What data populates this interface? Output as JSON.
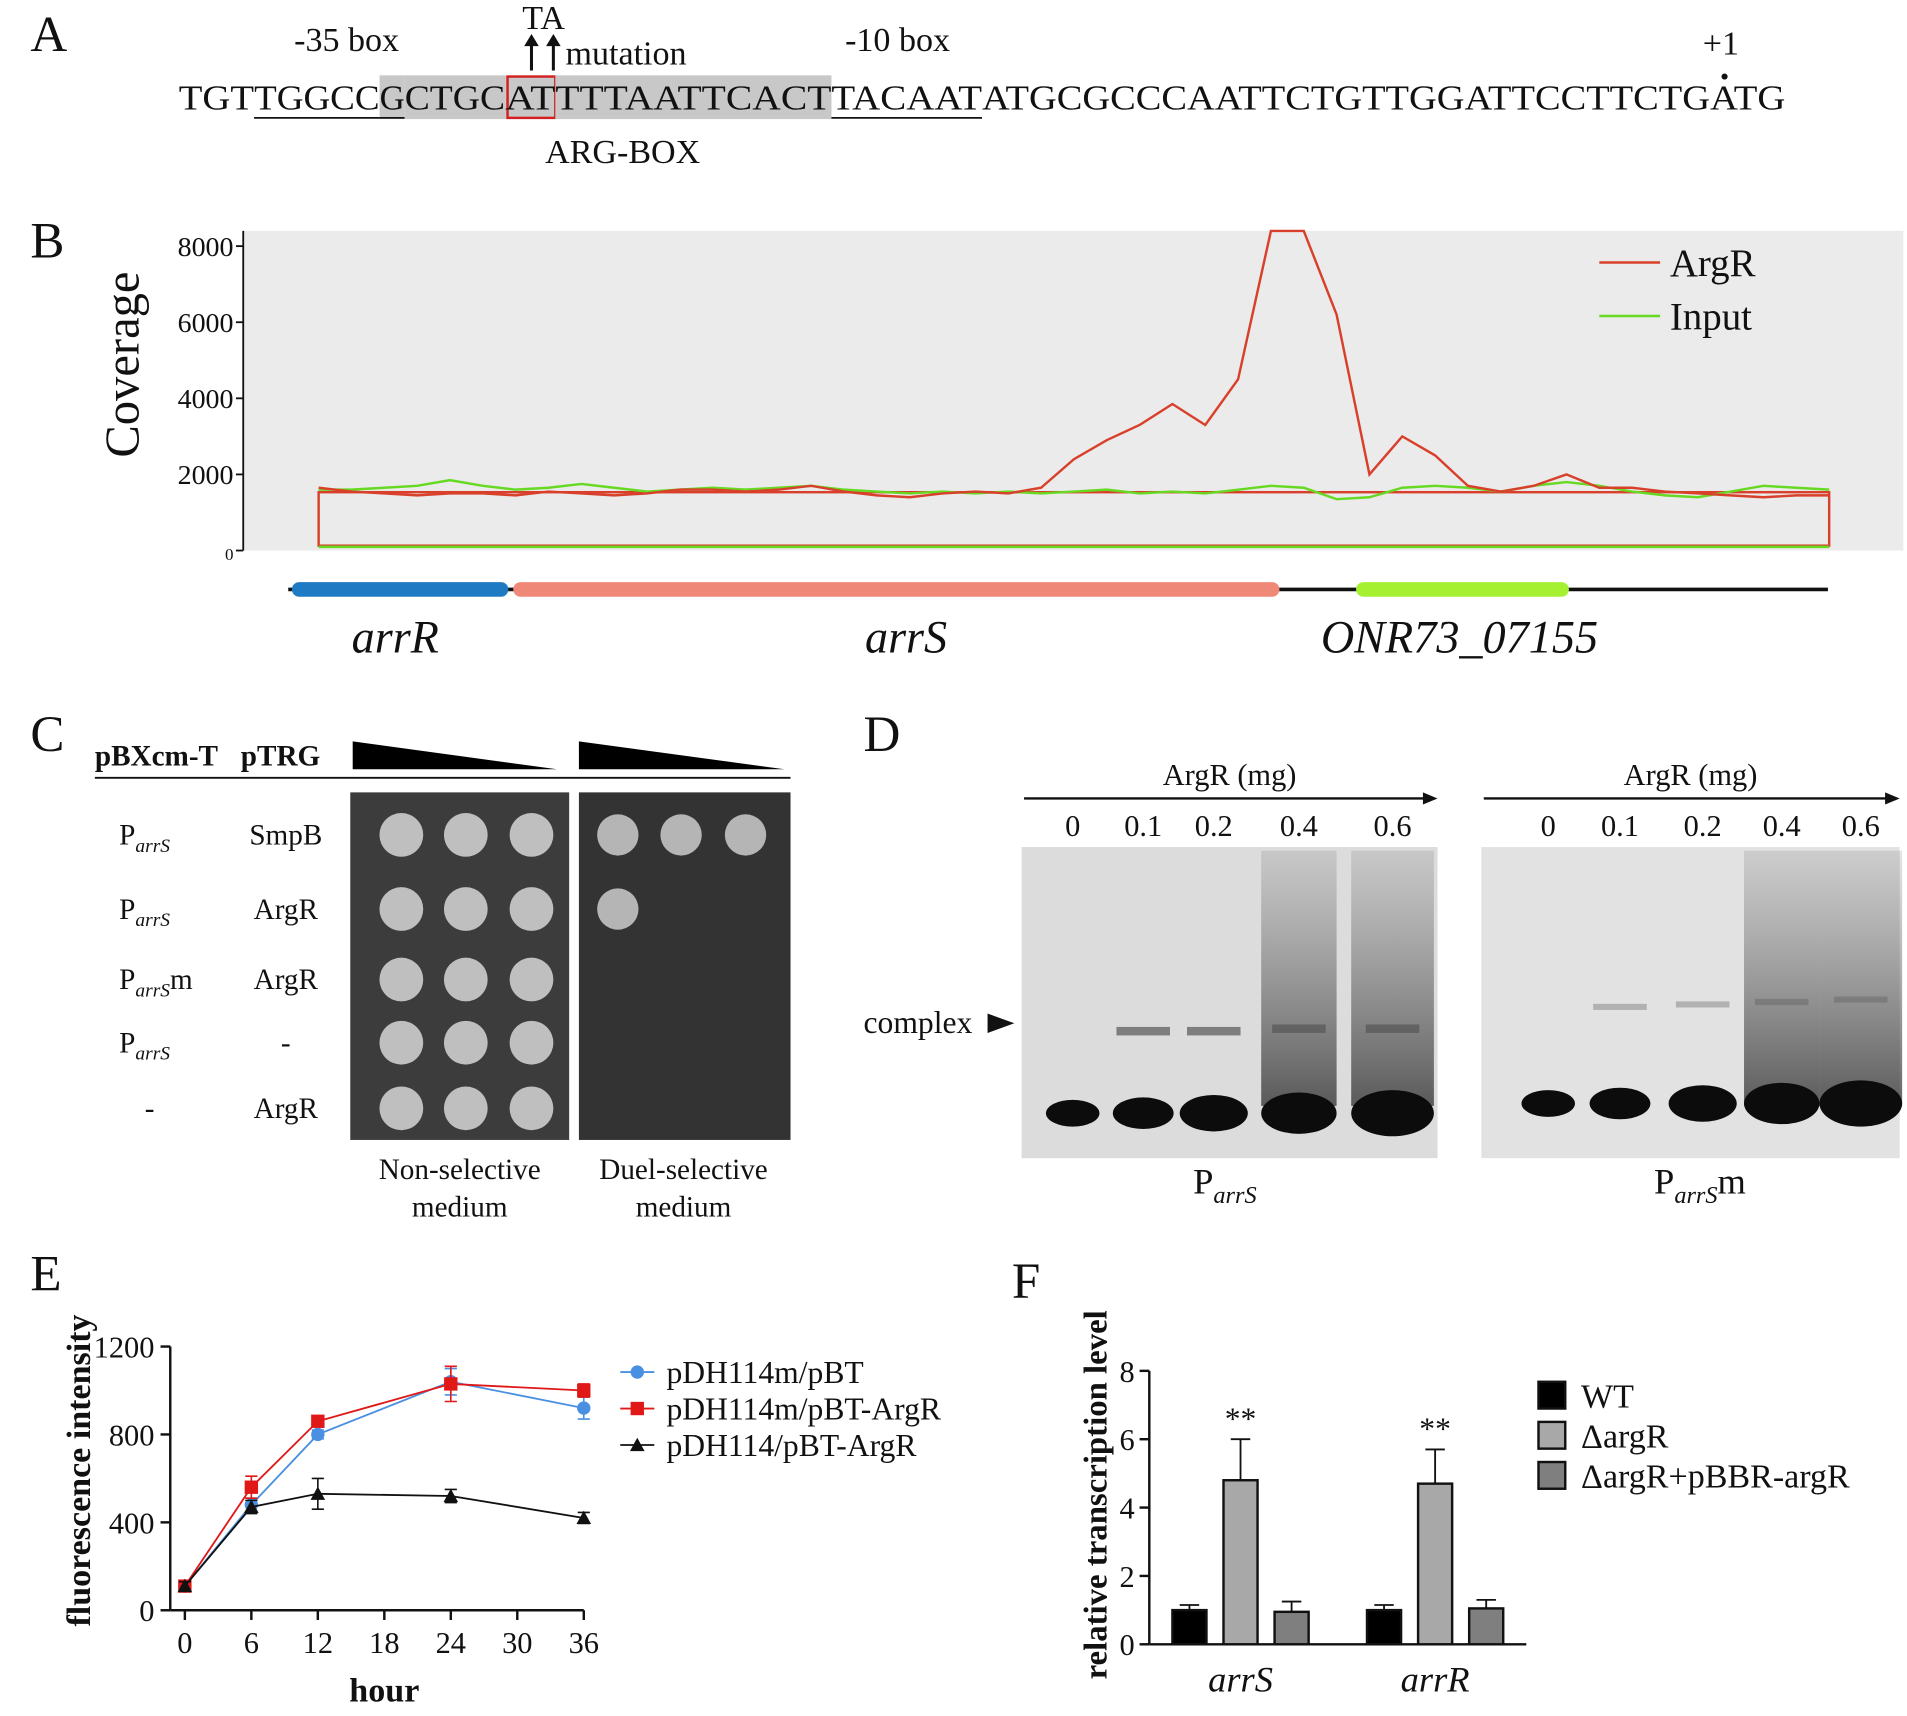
{
  "panel_labels": [
    "A",
    "B",
    "C",
    "D",
    "E",
    "F"
  ],
  "sequence": {
    "segments": [
      {
        "text": "TGT"
      },
      {
        "text": "TGGCC",
        "underline": true
      },
      {
        "text": "G",
        "underline": true,
        "shade": true
      },
      {
        "text": "CTGC",
        "shade": true
      },
      {
        "text": "AT",
        "shade": true,
        "boxed": true
      },
      {
        "text": "TTTAATTCACT",
        "shade": true
      },
      {
        "text": "TACAAT",
        "underline": true
      },
      {
        "text": "ATGCGCCCAATTCTGTTGGATTCCTTCTG"
      },
      {
        "text": "ATG",
        "color": "#d42020"
      }
    ],
    "minus35": "-35 box",
    "mutation_base": "TA",
    "mutation": "mutation",
    "minus10": "-10 box",
    "start": "+1",
    "arg_box": "ARG-BOX"
  },
  "chart_data": [
    {
      "type": "line",
      "y_label": "Coverage",
      "ylim": [
        0,
        8400
      ],
      "yticks": [
        0,
        2000,
        4000,
        6000,
        8000
      ],
      "legend": "upper right",
      "background": "#ebebeb",
      "series": [
        {
          "name": "ArgR",
          "color": "#d9402b",
          "values": [
            1650,
            1550,
            1500,
            1450,
            1500,
            1500,
            1450,
            1550,
            1500,
            1450,
            1500,
            1600,
            1600,
            1550,
            1600,
            1700,
            1550,
            1450,
            1400,
            1500,
            1550,
            1500,
            1650,
            2400,
            2900,
            3300,
            3850,
            3300,
            4500,
            8400,
            8400,
            6200,
            2000,
            3000,
            2500,
            1700,
            1550,
            1700,
            2000,
            1650,
            1650,
            1550,
            1500,
            1450,
            1400,
            1450,
            1450
          ]
        },
        {
          "name": "Input",
          "color": "#66d922",
          "values": [
            1600,
            1600,
            1650,
            1700,
            1850,
            1700,
            1600,
            1650,
            1750,
            1650,
            1550,
            1600,
            1650,
            1600,
            1650,
            1700,
            1600,
            1550,
            1500,
            1550,
            1500,
            1550,
            1500,
            1550,
            1600,
            1500,
            1550,
            1500,
            1600,
            1700,
            1650,
            1350,
            1400,
            1650,
            1700,
            1650,
            1550,
            1700,
            1800,
            1700,
            1550,
            1450,
            1400,
            1550,
            1700,
            1650,
            1600
          ]
        }
      ],
      "genes": [
        {
          "name": "arrR",
          "color": "#1f7ac4"
        },
        {
          "name": "arrS",
          "color": "#f08878"
        },
        {
          "name": "ONR73_07155",
          "color": "#a6f032"
        }
      ]
    },
    {
      "type": "line",
      "x_label": "hour",
      "y_label": "fluorescence intensity",
      "x": [
        0,
        6,
        12,
        24,
        36
      ],
      "xlim": [
        0,
        36
      ],
      "xticks": [
        0,
        6,
        12,
        18,
        24,
        30,
        36
      ],
      "ylim": [
        0,
        1200
      ],
      "yticks": [
        0,
        400,
        800,
        1200
      ],
      "legend": "right",
      "series": [
        {
          "name": "pDH114m/pBT",
          "color": "#4a90e2",
          "marker": "circle",
          "values": [
            110,
            480,
            800,
            1040,
            920
          ],
          "errors": [
            20,
            30,
            20,
            60,
            50
          ]
        },
        {
          "name": "pDH114m/pBT-ArgR",
          "color": "#e01818",
          "marker": "square",
          "values": [
            110,
            560,
            860,
            1030,
            1000
          ],
          "errors": [
            20,
            50,
            15,
            80,
            30
          ]
        },
        {
          "name": "pDH114/pBT-ArgR",
          "color": "#111111",
          "marker": "triangle",
          "values": [
            110,
            470,
            530,
            520,
            420
          ],
          "errors": [
            20,
            30,
            70,
            30,
            25
          ]
        }
      ]
    },
    {
      "type": "bar",
      "y_label": "relative transcription level",
      "categories": [
        "arrS",
        "arrR"
      ],
      "ylim": [
        0,
        8
      ],
      "yticks": [
        0,
        2,
        4,
        6,
        8
      ],
      "legend": "right",
      "series": [
        {
          "name": "WT",
          "color": "#000000",
          "values": [
            1,
            1
          ],
          "errors": [
            0.15,
            0.15
          ]
        },
        {
          "name": "ΔargR",
          "color": "#a8a8a8",
          "values": [
            4.8,
            4.7
          ],
          "errors": [
            1.2,
            1.0
          ]
        },
        {
          "name": "ΔargR+pBBR-argR",
          "color": "#7f7f7f",
          "values": [
            0.95,
            1.05
          ],
          "errors": [
            0.3,
            0.25
          ]
        }
      ],
      "annotations": [
        {
          "text": "**",
          "series": 1,
          "category": 0
        },
        {
          "text": "**",
          "series": 1,
          "category": 1
        }
      ]
    }
  ],
  "two_hybrid": {
    "headers": [
      "pBXcm-T",
      "pTRG"
    ],
    "rows": [
      {
        "bait": "P",
        "bait_sub": "arrS",
        "prey": "SmpB"
      },
      {
        "bait": "P",
        "bait_sub": "arrS",
        "prey": "ArgR"
      },
      {
        "bait": "P",
        "bait_sub": "arrS",
        "bait_suffix": "m",
        "prey": "ArgR"
      },
      {
        "bait": "P",
        "bait_sub": "arrS",
        "prey": "-"
      },
      {
        "bait": "-",
        "prey": "ArgR"
      }
    ],
    "media": [
      [
        "Non-selective",
        "medium"
      ],
      [
        "Duel-selective",
        "medium"
      ]
    ]
  },
  "emsa": {
    "titles": [
      "ArgR (mg)",
      "ArgR (mg)"
    ],
    "lanes": [
      [
        "0",
        "0.1",
        "0.2",
        "0.4",
        "0.6"
      ],
      [
        "0",
        "0.1",
        "0.2",
        "0.4",
        "0.6"
      ]
    ],
    "marker": "complex",
    "probes": [
      {
        "name": "P",
        "sub": "arrS"
      },
      {
        "name": "P",
        "sub": "arrS",
        "suffix": "m"
      }
    ]
  }
}
